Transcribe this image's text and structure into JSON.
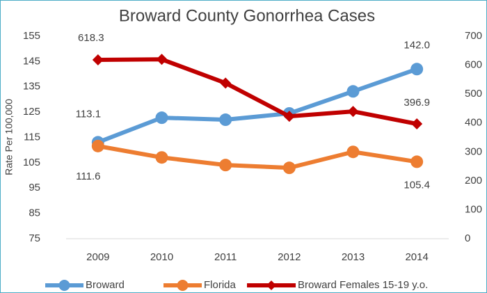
{
  "chart_data": {
    "type": "line",
    "title": "Broward County Gonorrhea Cases",
    "ylabel": "Rate Per 100,000",
    "categories": [
      "2009",
      "2010",
      "2011",
      "2012",
      "2013",
      "2014"
    ],
    "ylim": [
      75,
      155
    ],
    "yticks": [
      75,
      85,
      95,
      105,
      115,
      125,
      135,
      145,
      155
    ],
    "y2lim": [
      0,
      700
    ],
    "y2ticks": [
      0,
      100,
      200,
      300,
      400,
      500,
      600,
      700
    ],
    "series": [
      {
        "name": "Broward",
        "color": "#5b9bd5",
        "marker": "circle",
        "values": [
          113.1,
          122.8,
          122.0,
          124.5,
          133.2,
          142.0
        ],
        "value_labels": [
          "113.1",
          null,
          null,
          null,
          null,
          "142.0"
        ]
      },
      {
        "name": "Florida",
        "color": "#ed7d31",
        "marker": "circle",
        "values": [
          111.6,
          107.1,
          104.1,
          103.0,
          109.3,
          105.4
        ],
        "value_labels": [
          "111.6",
          null,
          null,
          null,
          null,
          "105.4"
        ]
      },
      {
        "name": "Broward Females 15-19 y.o.",
        "color": "#c00000",
        "marker": "diamond",
        "axis": "y2",
        "values": [
          618.3,
          620,
          538,
          423,
          440,
          396.9
        ],
        "value_labels": [
          "618.3",
          null,
          null,
          null,
          null,
          "396.9"
        ]
      }
    ]
  }
}
